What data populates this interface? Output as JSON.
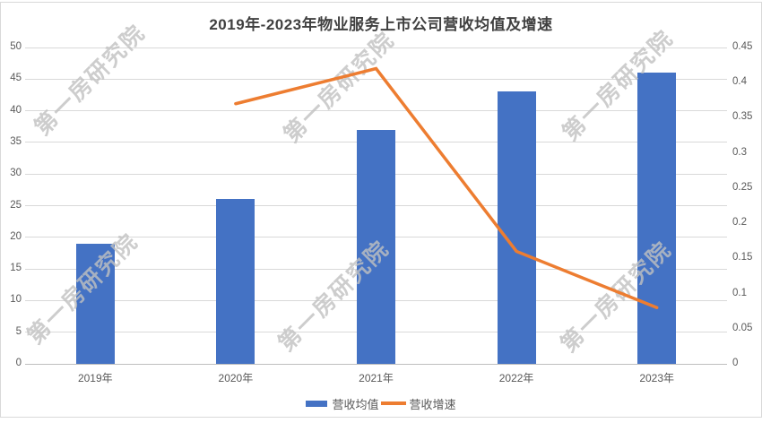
{
  "title": "2019年-2023年物业服务上市公司营收均值及增速",
  "watermark_text": "第一房研究院",
  "colors": {
    "bar": "#4472C4",
    "line": "#ED7D31",
    "grid": "#D9D9D9",
    "axis": "#BFBFBF",
    "title_text": "#404040",
    "label_text": "#595959",
    "watermark": "rgba(193,193,193,0.8)",
    "background": "#FFFFFF"
  },
  "legend": {
    "items": [
      {
        "label": "营收均值",
        "marker": "bar",
        "color": "#4472C4"
      },
      {
        "label": "营收增速",
        "marker": "line",
        "color": "#ED7D31"
      }
    ]
  },
  "chart_data": {
    "type": "combo (bar + line)",
    "title": "2019年-2023年物业服务上市公司营收均值及增速",
    "categories": [
      "2019年",
      "2020年",
      "2021年",
      "2022年",
      "2023年"
    ],
    "series": [
      {
        "name": "营收均值",
        "type": "bar",
        "axis": "left",
        "color": "#4472C4",
        "values": [
          19,
          26,
          37,
          43,
          46
        ]
      },
      {
        "name": "营收增速",
        "type": "line",
        "axis": "right",
        "color": "#ED7D31",
        "values": [
          null,
          0.37,
          0.42,
          0.16,
          0.08
        ]
      }
    ],
    "left_axis": {
      "min": 0,
      "max": 50,
      "step": 5,
      "tick_labels": [
        "0",
        "5",
        "10",
        "15",
        "20",
        "25",
        "30",
        "35",
        "40",
        "45",
        "50"
      ]
    },
    "right_axis": {
      "min": 0,
      "max": 0.45,
      "step": 0.05,
      "tick_labels": [
        "0",
        "0.05",
        "0.1",
        "0.15",
        "0.2",
        "0.25",
        "0.3",
        "0.35",
        "0.4",
        "0.45"
      ]
    },
    "grid": true,
    "legend_position": "bottom",
    "xlabel": "",
    "ylabel": ""
  }
}
